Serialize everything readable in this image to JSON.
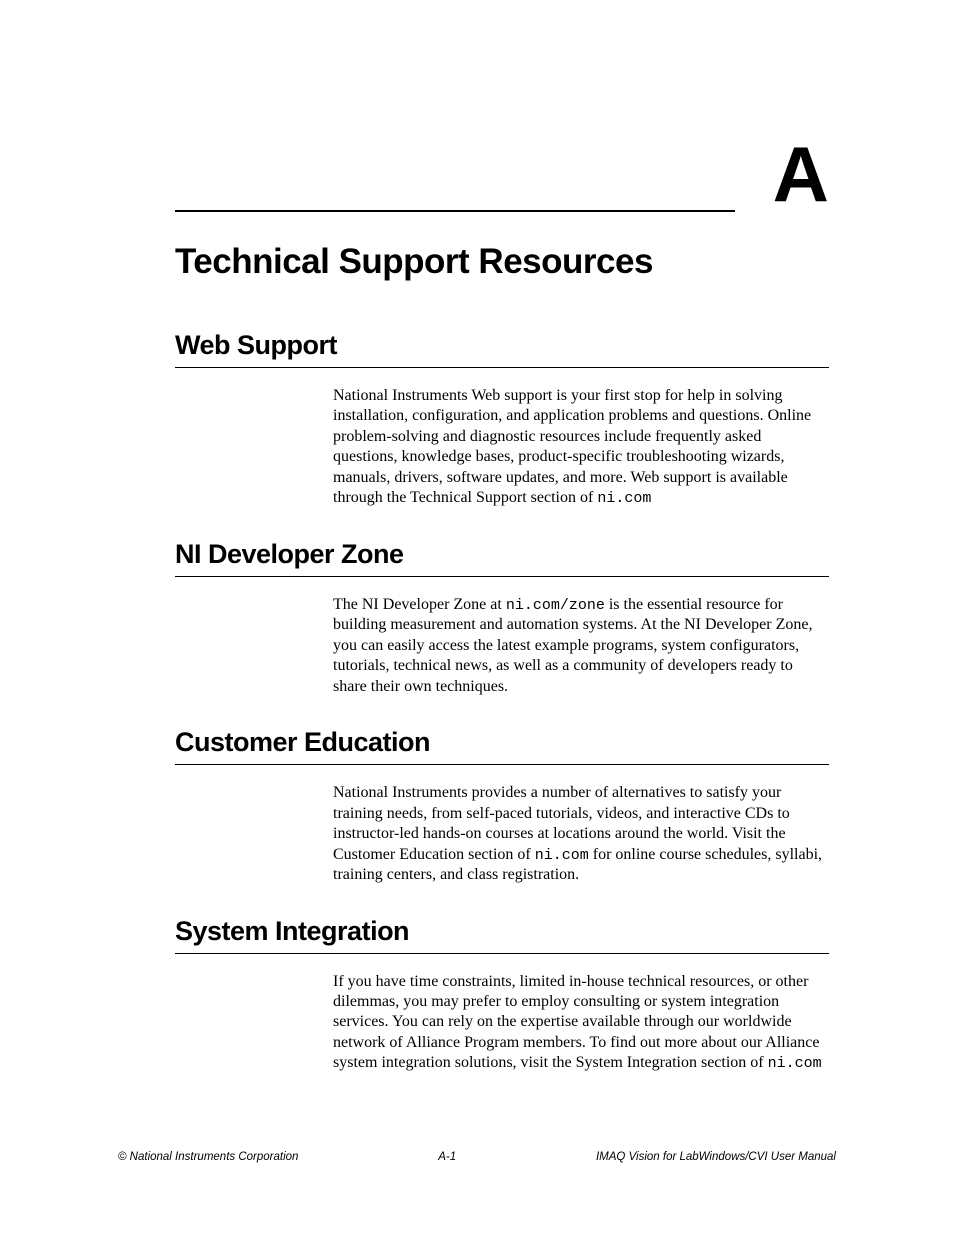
{
  "appendix_letter": "A",
  "main_title": "Technical Support Resources",
  "sections": {
    "web_support": {
      "heading": "Web Support",
      "body_pre": "National Instruments Web support is your first stop for help in solving installation, configuration, and application problems and questions. Online problem-solving and diagnostic resources include frequently asked questions, knowledge bases, product-specific troubleshooting wizards, manuals, drivers, software updates, and more. Web support is available through the Technical Support section of ",
      "body_mono": "ni.com"
    },
    "developer_zone": {
      "heading": "NI Developer Zone",
      "body_pre": "The NI Developer Zone at ",
      "body_mono": "ni.com/zone",
      "body_post": " is the essential resource for building measurement and automation systems. At the NI Developer Zone, you can easily access the latest example programs, system configurators, tutorials, technical news, as well as a community of developers ready to share their own techniques."
    },
    "customer_education": {
      "heading": "Customer Education",
      "body_pre": "National Instruments provides a number of alternatives to satisfy your training needs, from self-paced tutorials, videos, and interactive CDs to instructor-led hands-on courses at locations around the world. Visit the Customer Education section of ",
      "body_mono": "ni.com",
      "body_post": " for online course schedules, syllabi, training centers, and class registration."
    },
    "system_integration": {
      "heading": "System Integration",
      "body_pre": "If you have time constraints, limited in-house technical resources, or other dilemmas, you may prefer to employ consulting or system integration services. You can rely on the expertise available through our worldwide network of Alliance Program members. To find out more about our Alliance system integration solutions, visit the System Integration section of ",
      "body_mono": "ni.com"
    }
  },
  "footer": {
    "left": "© National Instruments Corporation",
    "center": "A-1",
    "right": "IMAQ Vision for LabWindows/CVI User Manual"
  },
  "colors": {
    "text": "#000000",
    "background": "#ffffff"
  },
  "typography": {
    "main_title_fontsize": 35,
    "section_heading_fontsize": 27,
    "body_fontsize": 16,
    "footer_fontsize": 11.5,
    "appendix_letter_fontsize": 78
  }
}
